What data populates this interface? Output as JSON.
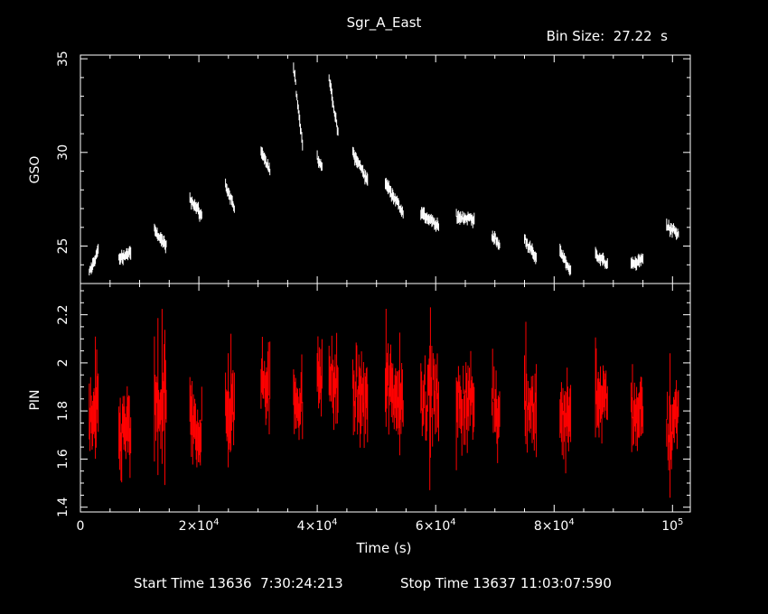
{
  "title": "Sgr_A_East",
  "bin_size_label": "Bin Size:  27.22  s",
  "footer": {
    "start": "Start Time 13636  7:30:24:213",
    "stop": "Stop Time 13637 11:03:07:590"
  },
  "colors": {
    "background": "#000000",
    "axes": "#ffffff",
    "gso": "#ffffff",
    "pin": "#ff0000"
  },
  "chart_data": [
    {
      "type": "scatter",
      "panel": "top",
      "ylabel": "GSO",
      "xlabel": "",
      "xlim": [
        0,
        103000
      ],
      "ylim": [
        23.0,
        35.2
      ],
      "yticks": [
        {
          "v": 25,
          "label": "25"
        },
        {
          "v": 30,
          "label": "30"
        },
        {
          "v": 35,
          "label": "35"
        }
      ],
      "error_bars": true,
      "color": "#ffffff",
      "segments": [
        {
          "x0": 1500,
          "x1": 3000,
          "y0": 23.5,
          "y1": 24.8
        },
        {
          "x0": 6500,
          "x1": 8500,
          "y0": 24.3,
          "y1": 24.7
        },
        {
          "x0": 12500,
          "x1": 14500,
          "y0": 25.8,
          "y1": 25.0
        },
        {
          "x0": 18500,
          "x1": 20500,
          "y0": 27.6,
          "y1": 26.6
        },
        {
          "x0": 24500,
          "x1": 26000,
          "y0": 28.3,
          "y1": 27.0
        },
        {
          "x0": 30500,
          "x1": 32000,
          "y0": 30.0,
          "y1": 29.0
        },
        {
          "x0": 36000,
          "x1": 37500,
          "y0": 34.5,
          "y1": 30.5
        },
        {
          "x0": 40000,
          "x1": 40800,
          "y0": 29.8,
          "y1": 29.2
        },
        {
          "x0": 42000,
          "x1": 43500,
          "y0": 34.0,
          "y1": 31.0
        },
        {
          "x0": 46000,
          "x1": 48500,
          "y0": 30.0,
          "y1": 28.5
        },
        {
          "x0": 51500,
          "x1": 54500,
          "y0": 28.4,
          "y1": 26.8
        },
        {
          "x0": 57500,
          "x1": 60500,
          "y0": 26.8,
          "y1": 26.0
        },
        {
          "x0": 63500,
          "x1": 66500,
          "y0": 26.6,
          "y1": 26.4
        },
        {
          "x0": 69500,
          "x1": 70800,
          "y0": 25.6,
          "y1": 25.0
        },
        {
          "x0": 75000,
          "x1": 77000,
          "y0": 25.4,
          "y1": 24.3
        },
        {
          "x0": 81000,
          "x1": 82800,
          "y0": 24.8,
          "y1": 23.6
        },
        {
          "x0": 87000,
          "x1": 89000,
          "y0": 24.6,
          "y1": 24.0
        },
        {
          "x0": 93000,
          "x1": 95000,
          "y0": 24.0,
          "y1": 24.3
        },
        {
          "x0": 99000,
          "x1": 101000,
          "y0": 26.1,
          "y1": 25.6
        }
      ]
    },
    {
      "type": "scatter",
      "panel": "bottom",
      "ylabel": "PIN",
      "xlabel": "Time (s)",
      "xlim": [
        0,
        103000
      ],
      "ylim": [
        1.38,
        2.33
      ],
      "yticks": [
        {
          "v": 1.4,
          "label": "1.4"
        },
        {
          "v": 1.6,
          "label": "1.6"
        },
        {
          "v": 1.8,
          "label": "1.8"
        },
        {
          "v": 2.0,
          "label": "2"
        },
        {
          "v": 2.2,
          "label": "2.2"
        }
      ],
      "xticks": [
        {
          "v": 0,
          "label": "0"
        },
        {
          "v": 20000,
          "label": "2×10",
          "exp": "4"
        },
        {
          "v": 40000,
          "label": "4×10",
          "exp": "4"
        },
        {
          "v": 60000,
          "label": "6×10",
          "exp": "4"
        },
        {
          "v": 80000,
          "label": "8×10",
          "exp": "4"
        },
        {
          "v": 100000,
          "label": "10",
          "exp": "5"
        }
      ],
      "error_bars": true,
      "color": "#ff0000",
      "segments": [
        {
          "x0": 1500,
          "x1": 3000,
          "y0": 1.75,
          "y1": 1.8
        },
        {
          "x0": 6500,
          "x1": 8500,
          "y0": 1.7,
          "y1": 1.72
        },
        {
          "x0": 12500,
          "x1": 14500,
          "y0": 1.8,
          "y1": 1.85
        },
        {
          "x0": 18500,
          "x1": 20500,
          "y0": 1.75,
          "y1": 1.72
        },
        {
          "x0": 24500,
          "x1": 26000,
          "y0": 1.78,
          "y1": 1.82
        },
        {
          "x0": 30500,
          "x1": 32000,
          "y0": 1.92,
          "y1": 1.9
        },
        {
          "x0": 36000,
          "x1": 37500,
          "y0": 1.85,
          "y1": 1.82
        },
        {
          "x0": 40000,
          "x1": 40800,
          "y0": 1.95,
          "y1": 1.92
        },
        {
          "x0": 42000,
          "x1": 43500,
          "y0": 1.95,
          "y1": 1.9
        },
        {
          "x0": 46000,
          "x1": 48500,
          "y0": 1.88,
          "y1": 1.85
        },
        {
          "x0": 51500,
          "x1": 54500,
          "y0": 1.92,
          "y1": 1.85
        },
        {
          "x0": 57500,
          "x1": 60500,
          "y0": 1.88,
          "y1": 1.85
        },
        {
          "x0": 63500,
          "x1": 66500,
          "y0": 1.82,
          "y1": 1.85
        },
        {
          "x0": 69500,
          "x1": 70800,
          "y0": 1.88,
          "y1": 1.8
        },
        {
          "x0": 75000,
          "x1": 77000,
          "y0": 1.85,
          "y1": 1.8
        },
        {
          "x0": 81000,
          "x1": 82800,
          "y0": 1.75,
          "y1": 1.78
        },
        {
          "x0": 87000,
          "x1": 89000,
          "y0": 1.88,
          "y1": 1.82
        },
        {
          "x0": 93000,
          "x1": 95000,
          "y0": 1.8,
          "y1": 1.78
        },
        {
          "x0": 99000,
          "x1": 101000,
          "y0": 1.7,
          "y1": 1.8
        }
      ]
    }
  ]
}
